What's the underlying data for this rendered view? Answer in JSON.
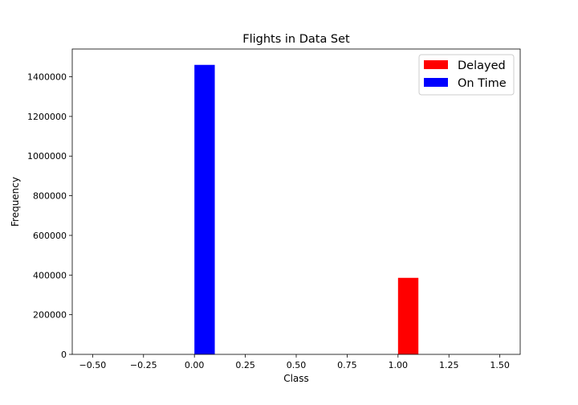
{
  "chart_data": {
    "type": "bar",
    "title": "Flights in Data Set",
    "xlabel": "Class",
    "ylabel": "Frequency",
    "xlim": [
      -0.6,
      1.6
    ],
    "ylim": [
      0,
      1540000
    ],
    "xticks": [
      -0.5,
      -0.25,
      0.0,
      0.25,
      0.5,
      0.75,
      1.0,
      1.25,
      1.5
    ],
    "xtick_labels": [
      "−0.50",
      "−0.25",
      "0.00",
      "0.25",
      "0.50",
      "0.75",
      "1.00",
      "1.25",
      "1.50"
    ],
    "yticks": [
      0,
      200000,
      400000,
      600000,
      800000,
      1000000,
      1200000,
      1400000
    ],
    "ytick_labels": [
      "0",
      "200000",
      "400000",
      "600000",
      "800000",
      "1000000",
      "1200000",
      "1400000"
    ],
    "grid": false,
    "legend_position": "top-right",
    "series": [
      {
        "name": "Delayed",
        "color": "#ff0000",
        "bars": [
          {
            "x0": 1.0,
            "x1": 1.1,
            "value": 386000
          }
        ]
      },
      {
        "name": "On Time",
        "color": "#0000ff",
        "bars": [
          {
            "x0": 0.0,
            "x1": 0.1,
            "value": 1460000
          }
        ]
      }
    ]
  }
}
